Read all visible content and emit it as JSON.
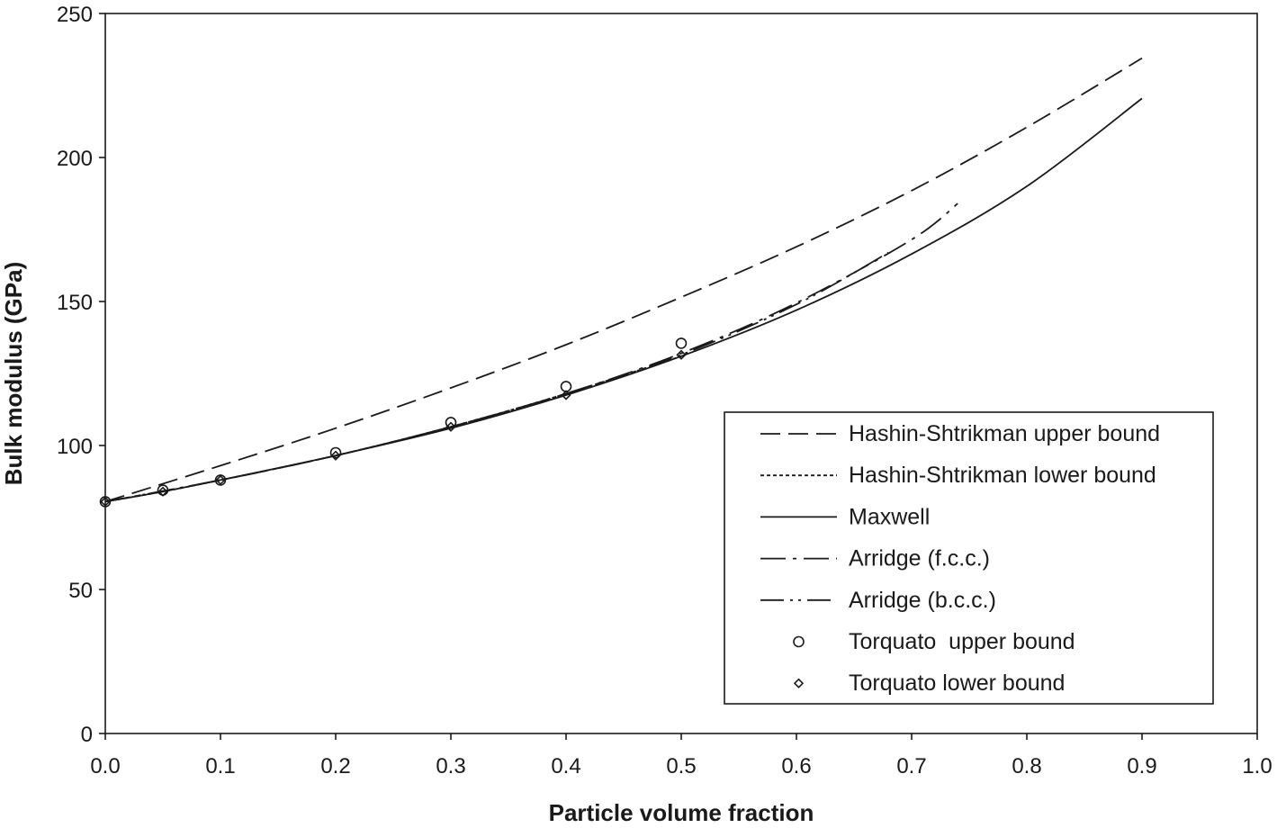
{
  "chart_data": {
    "type": "line",
    "title": "",
    "xlabel": "Particle volume fraction",
    "ylabel": "Bulk modulus (GPa)",
    "xlim": [
      0,
      1.0
    ],
    "ylim": [
      0,
      250
    ],
    "x_ticks": [
      "0.0",
      "0.1",
      "0.2",
      "0.3",
      "0.4",
      "0.5",
      "0.6",
      "0.7",
      "0.8",
      "0.9",
      "1.0"
    ],
    "y_ticks": [
      "0",
      "50",
      "100",
      "150",
      "200",
      "250"
    ],
    "grid": false,
    "legend_position": "bottom-right",
    "series": [
      {
        "name": "Hashin-Shtrikman upper bound",
        "style": "dashed",
        "marker": "none",
        "x": [
          0,
          0.1,
          0.2,
          0.3,
          0.4,
          0.5,
          0.6,
          0.7,
          0.8,
          0.9
        ],
        "y": [
          80.5,
          93,
          106,
          120,
          135,
          151.5,
          169,
          188.5,
          210.5,
          234.5
        ]
      },
      {
        "name": "Hashin-Shtrikman lower bound",
        "style": "dotted",
        "marker": "none",
        "x": [
          0,
          0.05,
          0.1,
          0.2,
          0.3,
          0.4,
          0.5
        ],
        "y": [
          80.5,
          84,
          88,
          96.5,
          106.5,
          118,
          131
        ]
      },
      {
        "name": "Maxwell",
        "style": "solid",
        "marker": "none",
        "x": [
          0,
          0.05,
          0.1,
          0.2,
          0.3,
          0.4,
          0.5,
          0.6,
          0.7,
          0.8,
          0.9
        ],
        "y": [
          80.5,
          84,
          88,
          96.5,
          106,
          117.5,
          131,
          147,
          166.5,
          190,
          220.5
        ]
      },
      {
        "name": "Arridge (f.c.c.)",
        "style": "dash-dot",
        "marker": "none",
        "x": [
          0,
          0.1,
          0.2,
          0.3,
          0.4,
          0.5,
          0.6,
          0.7,
          0.74
        ],
        "y": [
          80.5,
          88,
          96.5,
          106.5,
          118,
          132,
          149.5,
          171.5,
          184
        ]
      },
      {
        "name": "Arridge (b.c.c.)",
        "style": "dash-dot-dot",
        "marker": "none",
        "x": [
          0,
          0.1,
          0.2,
          0.3,
          0.4,
          0.5,
          0.6,
          0.68
        ],
        "y": [
          80.5,
          88,
          96.5,
          106.5,
          118,
          131.5,
          149,
          167
        ]
      },
      {
        "name": "Torquato  upper bound",
        "style": "none",
        "marker": "circle",
        "x": [
          0,
          0.05,
          0.1,
          0.2,
          0.3,
          0.4,
          0.5
        ],
        "y": [
          80.5,
          84.5,
          88,
          97.5,
          108,
          120.5,
          135.5
        ]
      },
      {
        "name": "Torquato lower bound",
        "style": "none",
        "marker": "diamond",
        "x": [
          0,
          0.05,
          0.1,
          0.2,
          0.3,
          0.4,
          0.5
        ],
        "y": [
          80.5,
          84,
          88,
          96.5,
          106.5,
          117.5,
          131.5
        ]
      }
    ]
  }
}
